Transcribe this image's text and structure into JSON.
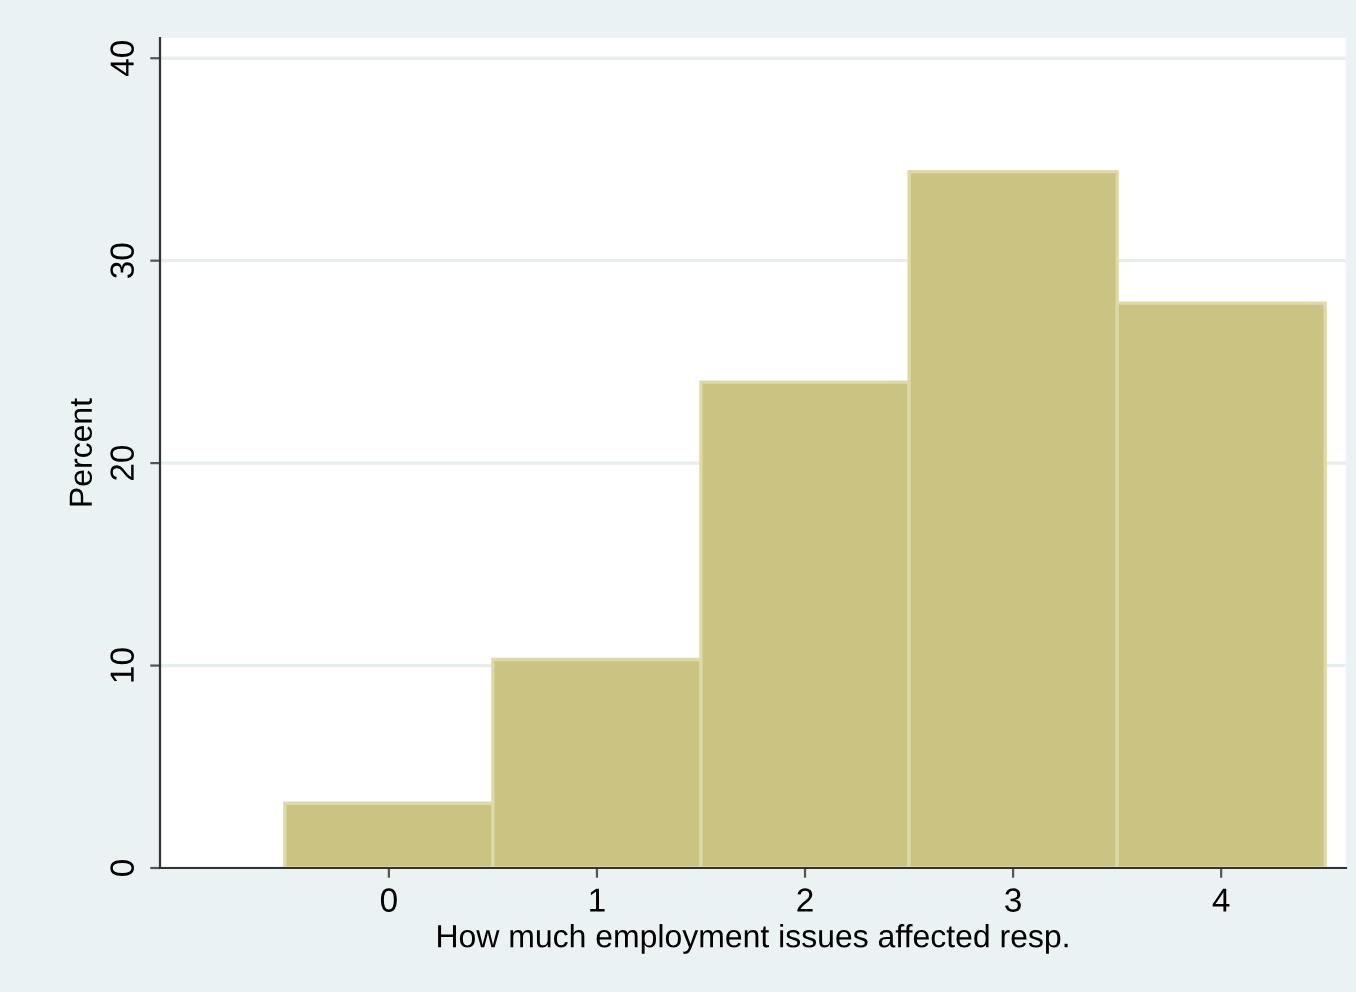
{
  "chart_data": {
    "type": "histogram",
    "xlabel": "How much employment issues affected resp.",
    "ylabel": "Percent",
    "bins": [
      -0.5,
      0.5,
      1.5,
      2.5,
      3.5,
      4.5
    ],
    "values": [
      3.2,
      10.3,
      24.0,
      34.4,
      27.9
    ],
    "color": "#cbc382",
    "xlim": [
      -1.1,
      4.6
    ],
    "xticks": [
      0,
      1,
      2,
      3,
      4
    ],
    "ylim": [
      0,
      41
    ],
    "yticks": [
      0,
      10,
      20,
      30,
      40
    ],
    "grid": "y"
  }
}
